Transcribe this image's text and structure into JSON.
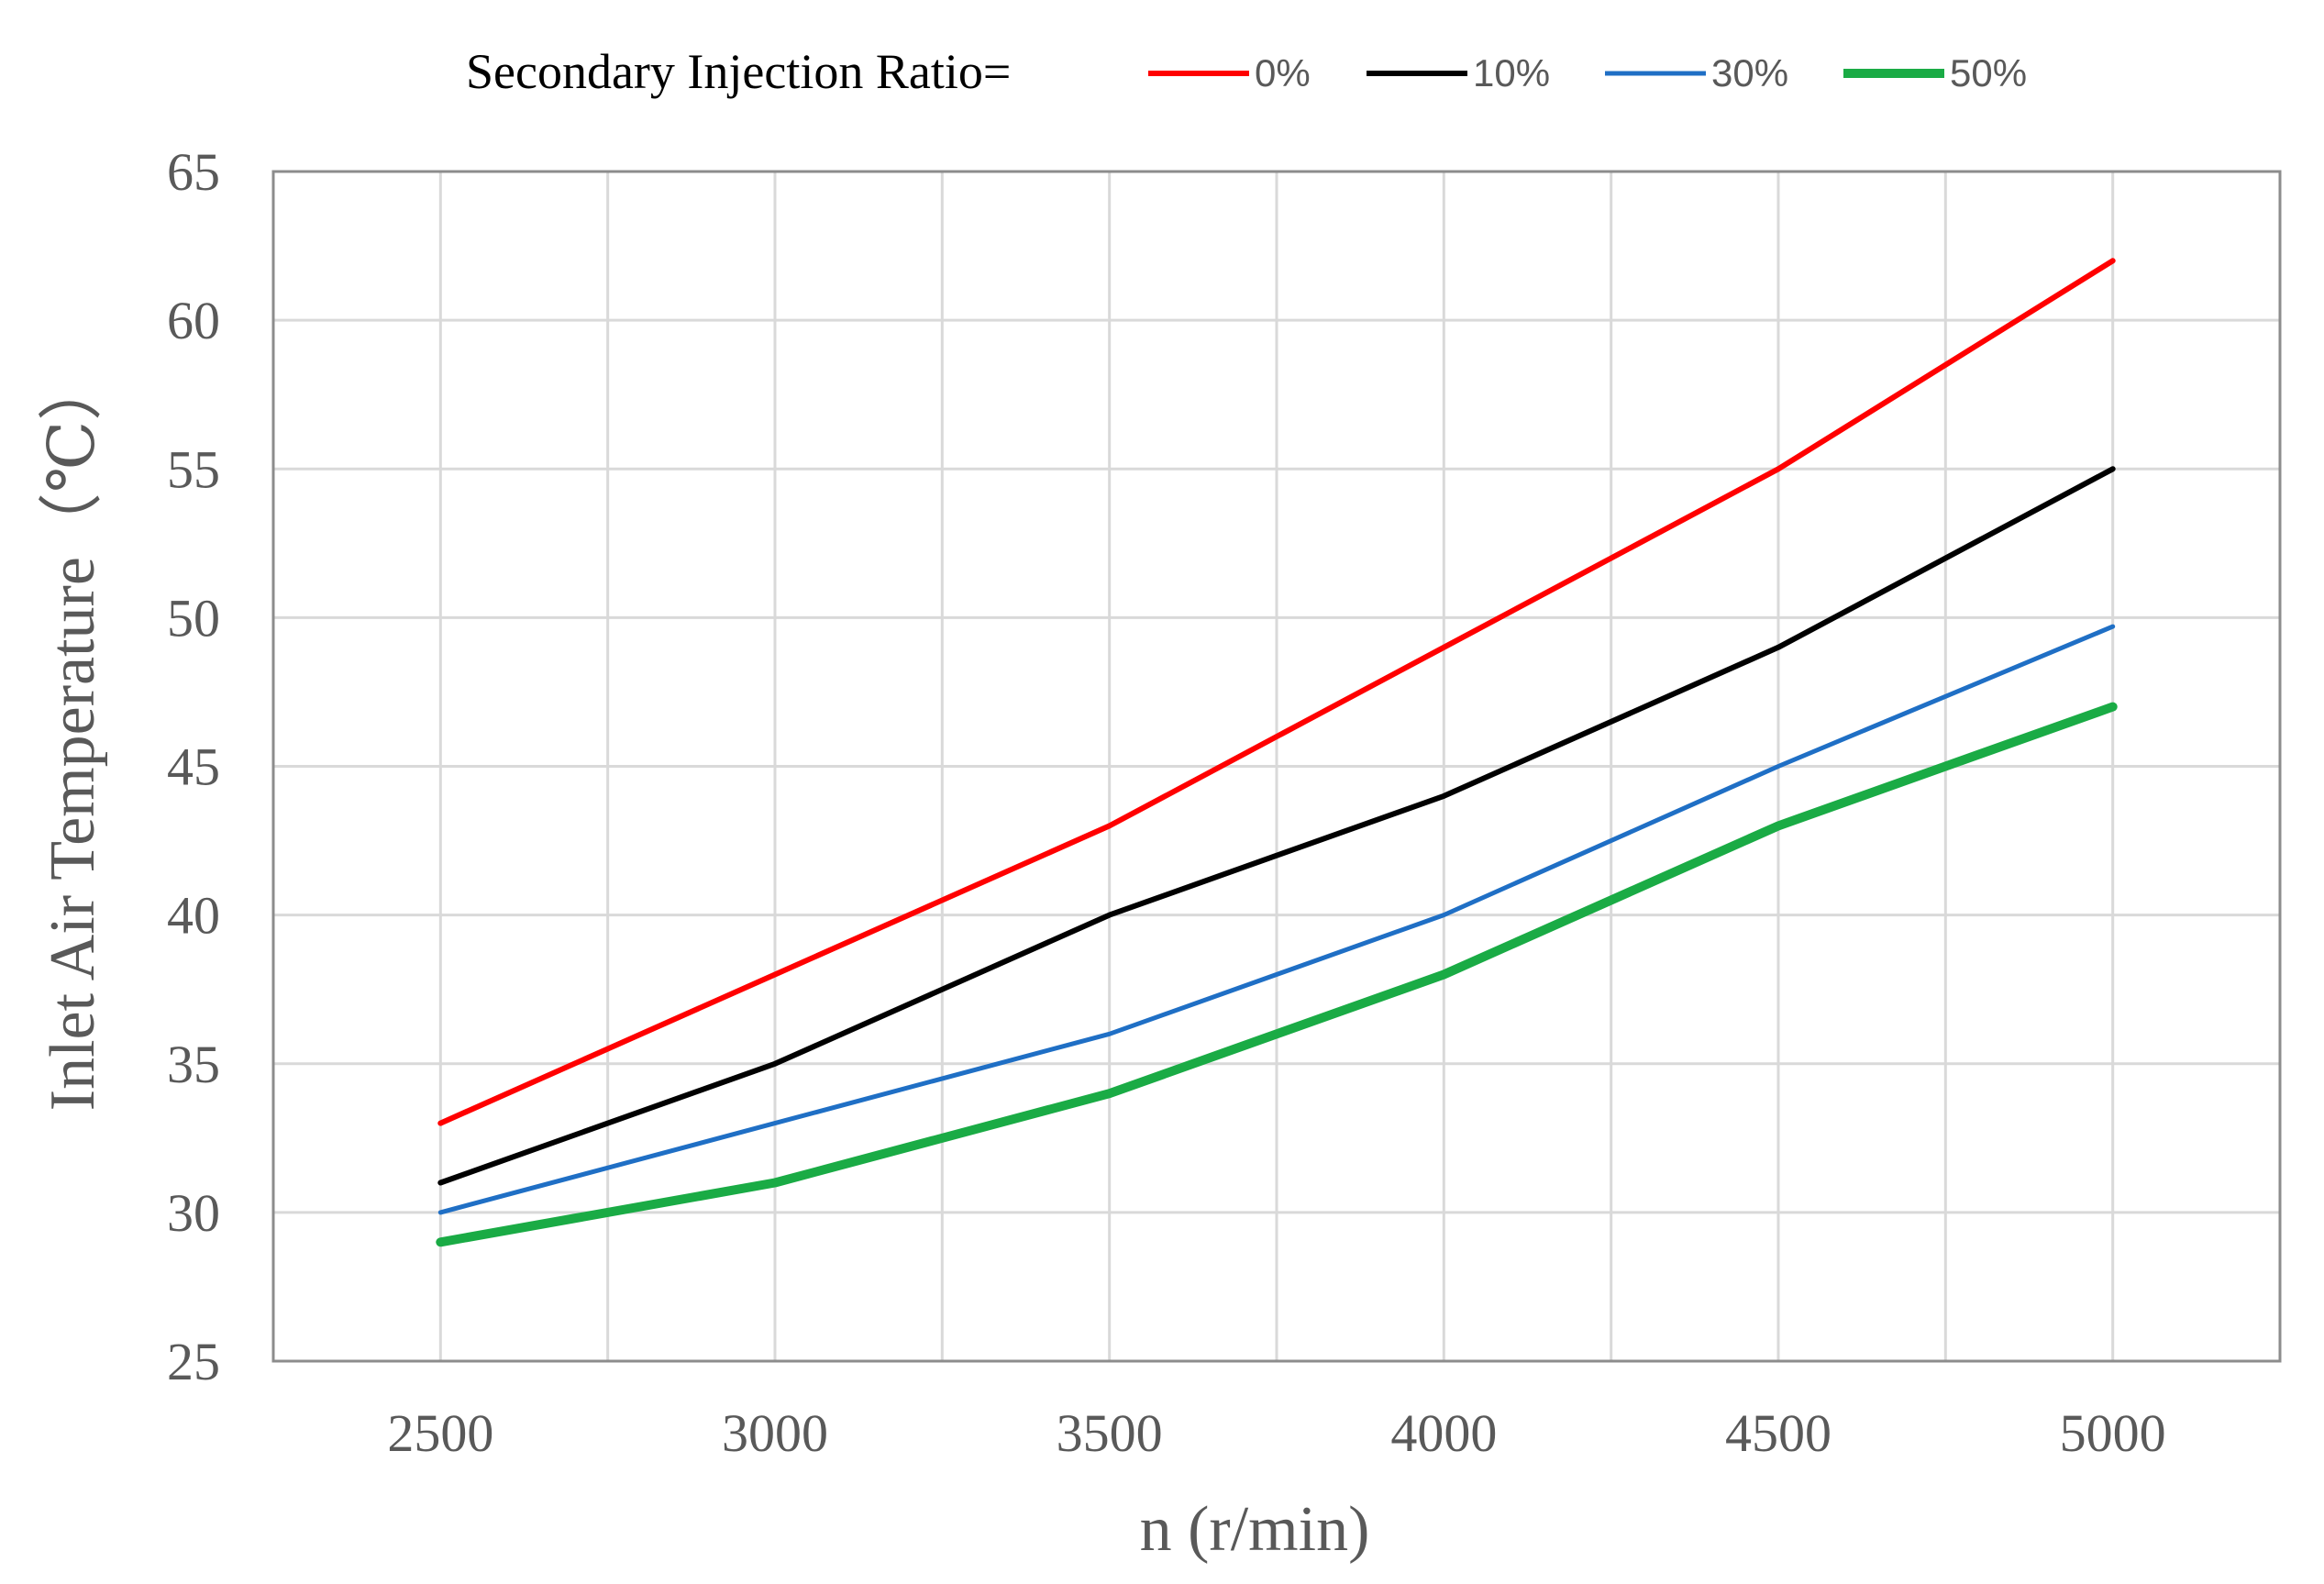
{
  "chart_data": {
    "type": "line",
    "title": "",
    "legend_title": "Secondary Injection Ratio=",
    "legend_position": "top",
    "xlabel": "n (r/min)",
    "ylabel": "Inlet Air Temperature（℃）",
    "x": [
      2500,
      3000,
      3500,
      4000,
      4500,
      5000
    ],
    "x_ticks": [
      "2500",
      "3000",
      "3500",
      "4000",
      "4500",
      "5000"
    ],
    "xlim": [
      2250,
      5250
    ],
    "ylim": [
      25,
      65
    ],
    "y_ticks": [
      "25",
      "30",
      "35",
      "40",
      "45",
      "50",
      "55",
      "60",
      "65"
    ],
    "grid": true,
    "series": [
      {
        "name": "0%",
        "color": "#ff0000",
        "values": [
          33,
          38,
          43,
          49,
          55,
          62
        ]
      },
      {
        "name": "10%",
        "color": "#000000",
        "values": [
          31,
          35,
          40,
          44,
          49,
          55
        ]
      },
      {
        "name": "30%",
        "color": "#1f6fc5",
        "values": [
          30,
          33,
          36,
          40,
          45,
          49.7
        ]
      },
      {
        "name": "50%",
        "color": "#1aab45",
        "values": [
          29,
          31,
          34,
          38,
          43,
          47
        ]
      }
    ]
  }
}
